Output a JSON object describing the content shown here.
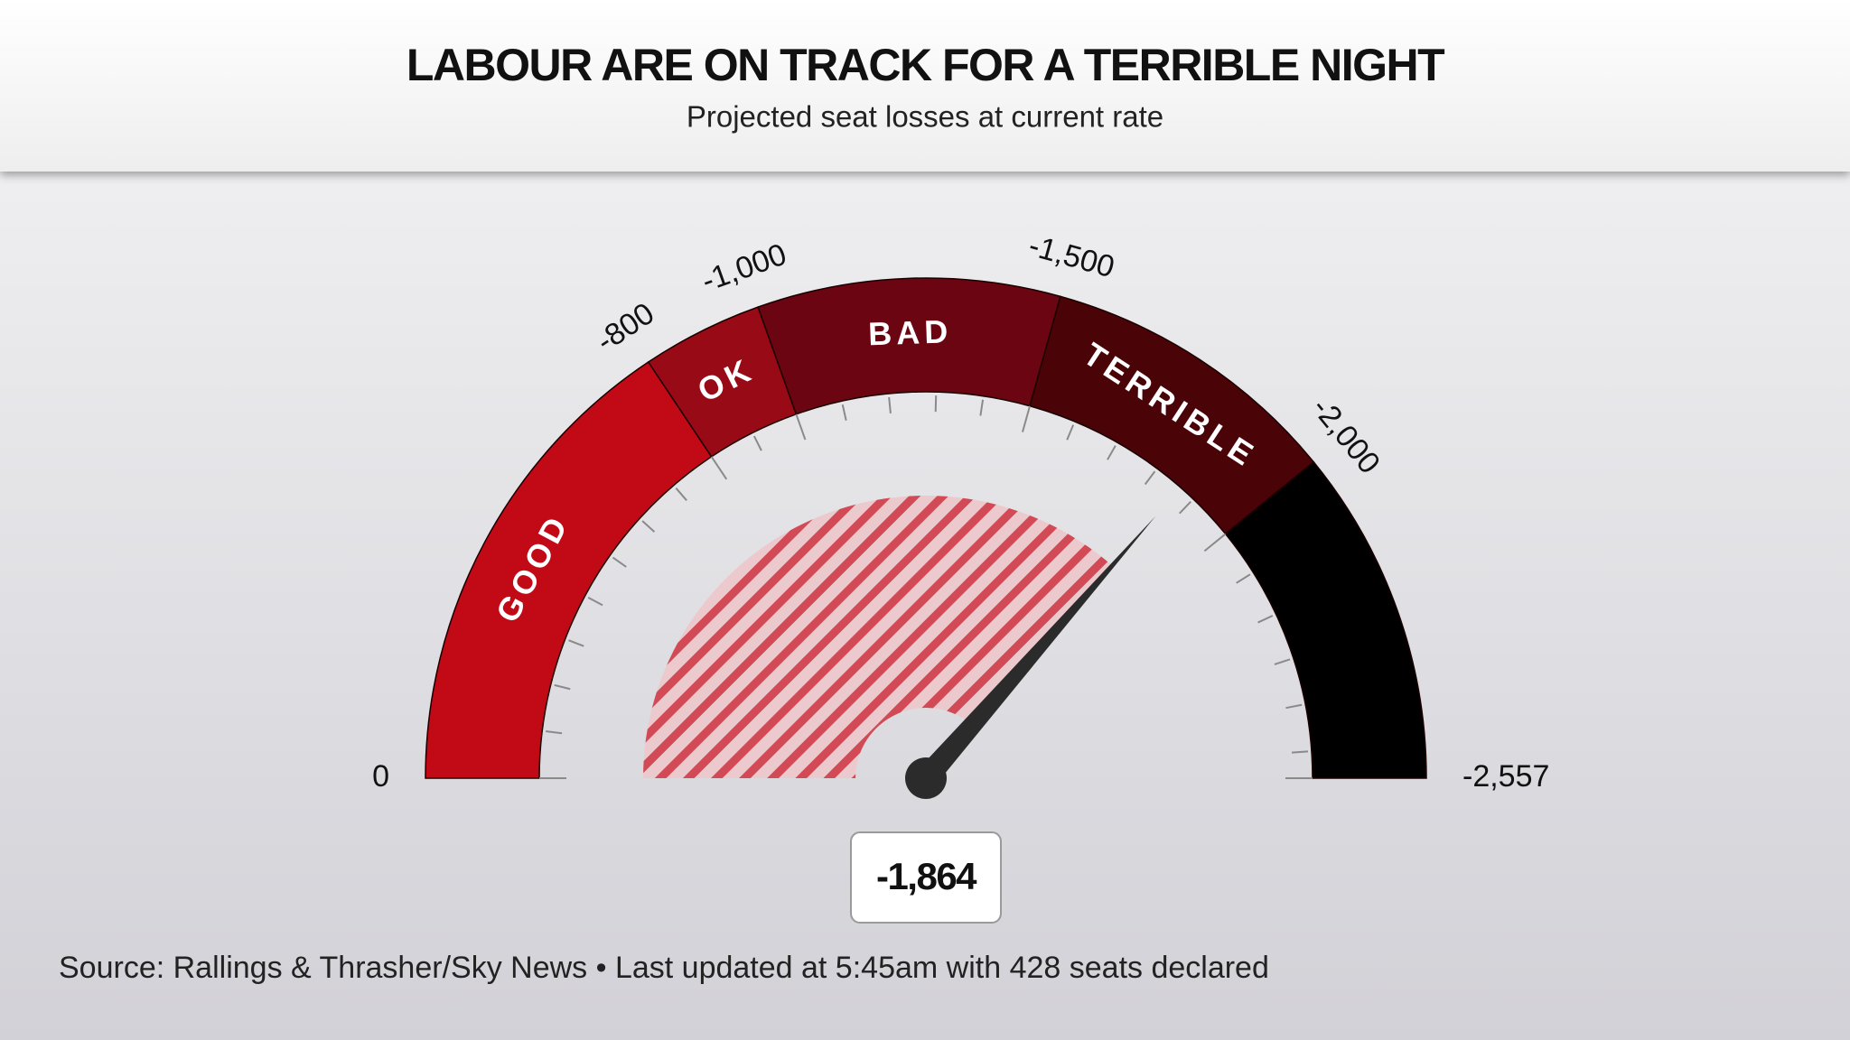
{
  "chart_data": {
    "type": "gauge",
    "title": "LABOUR ARE ON TRACK FOR A TERRIBLE NIGHT",
    "subtitle": "Projected seat losses at current rate",
    "source": "Source: Rallings & Thrasher/Sky News • Last updated at 5:45am with 428 seats declared",
    "xlim": [
      0,
      -2557
    ],
    "xticks": [
      0,
      -800,
      {
        "value": -1000,
        "label": "-1,000"
      },
      {
        "value": -1500,
        "label": "-1,500"
      },
      {
        "value": -2000,
        "label": "-2,000"
      },
      {
        "value": -2557,
        "label": "-2,557"
      }
    ],
    "minor_ticks": [
      -100,
      -200,
      -300,
      -400,
      -500,
      -600,
      -700,
      -900,
      -1100,
      -1200,
      -1300,
      -1400,
      -1600,
      -1700,
      -1800,
      -1900,
      -2100,
      -2200,
      -2300,
      -2400,
      -2500
    ],
    "bands": [
      {
        "name": "GOOD",
        "color": "#c20a17",
        "range": [
          0,
          -800
        ]
      },
      {
        "name": "OK",
        "color": "#980a15",
        "range": [
          -800,
          -1000
        ]
      },
      {
        "name": "BAD",
        "color": "#6a0511",
        "range": [
          -1000,
          -1500
        ]
      },
      {
        "name": "TERRIBLE",
        "color": "#4a0306",
        "range": [
          -1500,
          -2000
        ]
      },
      {
        "color": "#000000",
        "range": [
          -2000,
          -2557
        ]
      }
    ],
    "value": -1864,
    "value_label": "-1,864",
    "needle_color": "#2b2b2b",
    "hatch_color": "#d24a56"
  }
}
